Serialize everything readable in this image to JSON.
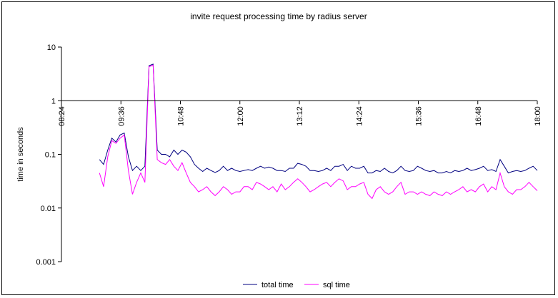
{
  "chart_data": {
    "type": "line",
    "title": "invite request processing time by radius server",
    "ylabel": "time in seconds",
    "xlabel": "",
    "y_scale": "log",
    "ylim": [
      0.001,
      10
    ],
    "y_ticks": [
      0.001,
      0.01,
      0.1,
      1,
      10
    ],
    "y_tick_labels": [
      "0.001",
      "0.01",
      "0.1",
      "1",
      "10"
    ],
    "x_unit": "minutes_of_day",
    "xlim": [
      504,
      1080
    ],
    "x_ticks": [
      504,
      576,
      648,
      720,
      792,
      864,
      936,
      1008,
      1080
    ],
    "x_tick_labels": [
      "08:24",
      "09:36",
      "10:48",
      "12:00",
      "13:12",
      "14:24",
      "15:36",
      "16:48",
      "18:00"
    ],
    "x_axis_crosses_y": 1,
    "grid": false,
    "legend": "bottom",
    "series": [
      {
        "name": "total time",
        "color": "#000080",
        "x": [
          550,
          555,
          560,
          565,
          570,
          575,
          580,
          585,
          590,
          595,
          600,
          605,
          610,
          615,
          620,
          625,
          630,
          635,
          640,
          645,
          650,
          655,
          660,
          665,
          670,
          675,
          680,
          685,
          690,
          695,
          700,
          705,
          710,
          715,
          720,
          725,
          730,
          735,
          740,
          745,
          750,
          755,
          760,
          765,
          770,
          775,
          780,
          785,
          790,
          795,
          800,
          805,
          810,
          815,
          820,
          825,
          830,
          835,
          840,
          845,
          850,
          855,
          860,
          865,
          870,
          875,
          880,
          885,
          890,
          895,
          900,
          905,
          910,
          915,
          920,
          925,
          930,
          935,
          940,
          945,
          950,
          955,
          960,
          965,
          970,
          975,
          980,
          985,
          990,
          995,
          1000,
          1005,
          1010,
          1015,
          1020,
          1025,
          1030,
          1035,
          1040,
          1045,
          1050,
          1055,
          1060,
          1065,
          1070,
          1075,
          1080
        ],
        "values": [
          0.08,
          0.065,
          0.12,
          0.2,
          0.17,
          0.23,
          0.25,
          0.09,
          0.05,
          0.06,
          0.05,
          0.06,
          4.5,
          4.8,
          0.12,
          0.1,
          0.1,
          0.09,
          0.12,
          0.1,
          0.12,
          0.11,
          0.09,
          0.065,
          0.055,
          0.048,
          0.055,
          0.05,
          0.046,
          0.05,
          0.06,
          0.05,
          0.055,
          0.05,
          0.048,
          0.05,
          0.052,
          0.05,
          0.055,
          0.06,
          0.055,
          0.058,
          0.055,
          0.05,
          0.05,
          0.048,
          0.055,
          0.055,
          0.068,
          0.065,
          0.06,
          0.05,
          0.05,
          0.048,
          0.05,
          0.055,
          0.05,
          0.06,
          0.06,
          0.065,
          0.05,
          0.06,
          0.055,
          0.055,
          0.06,
          0.045,
          0.045,
          0.05,
          0.048,
          0.055,
          0.048,
          0.045,
          0.05,
          0.06,
          0.05,
          0.048,
          0.05,
          0.06,
          0.055,
          0.05,
          0.048,
          0.05,
          0.045,
          0.045,
          0.048,
          0.045,
          0.05,
          0.048,
          0.05,
          0.055,
          0.05,
          0.052,
          0.055,
          0.06,
          0.05,
          0.052,
          0.048,
          0.08,
          0.06,
          0.045,
          0.048,
          0.05,
          0.048,
          0.05,
          0.055,
          0.06,
          0.05
        ]
      },
      {
        "name": "sql time",
        "color": "#FF00FF",
        "x": [
          550,
          555,
          560,
          565,
          570,
          575,
          580,
          585,
          590,
          595,
          600,
          605,
          610,
          615,
          620,
          625,
          630,
          635,
          640,
          645,
          650,
          655,
          660,
          665,
          670,
          675,
          680,
          685,
          690,
          695,
          700,
          705,
          710,
          715,
          720,
          725,
          730,
          735,
          740,
          745,
          750,
          755,
          760,
          765,
          770,
          775,
          780,
          785,
          790,
          795,
          800,
          805,
          810,
          815,
          820,
          825,
          830,
          835,
          840,
          845,
          850,
          855,
          860,
          865,
          870,
          875,
          880,
          885,
          890,
          895,
          900,
          905,
          910,
          915,
          920,
          925,
          930,
          935,
          940,
          945,
          950,
          955,
          960,
          965,
          970,
          975,
          980,
          985,
          990,
          995,
          1000,
          1005,
          1010,
          1015,
          1020,
          1025,
          1030,
          1035,
          1040,
          1045,
          1050,
          1055,
          1060,
          1065,
          1070,
          1075,
          1080
        ],
        "values": [
          0.045,
          0.025,
          0.09,
          0.18,
          0.16,
          0.2,
          0.23,
          0.05,
          0.018,
          0.03,
          0.045,
          0.03,
          4.3,
          4.6,
          0.08,
          0.07,
          0.065,
          0.08,
          0.06,
          0.05,
          0.07,
          0.045,
          0.03,
          0.025,
          0.02,
          0.022,
          0.025,
          0.02,
          0.017,
          0.02,
          0.025,
          0.022,
          0.018,
          0.02,
          0.02,
          0.025,
          0.025,
          0.022,
          0.03,
          0.028,
          0.025,
          0.022,
          0.025,
          0.02,
          0.028,
          0.022,
          0.025,
          0.03,
          0.035,
          0.03,
          0.025,
          0.02,
          0.022,
          0.025,
          0.028,
          0.03,
          0.025,
          0.03,
          0.035,
          0.032,
          0.022,
          0.025,
          0.025,
          0.028,
          0.03,
          0.018,
          0.015,
          0.022,
          0.025,
          0.02,
          0.018,
          0.02,
          0.025,
          0.03,
          0.018,
          0.02,
          0.02,
          0.018,
          0.02,
          0.018,
          0.017,
          0.02,
          0.018,
          0.017,
          0.02,
          0.018,
          0.02,
          0.022,
          0.025,
          0.02,
          0.022,
          0.02,
          0.025,
          0.028,
          0.02,
          0.025,
          0.022,
          0.045,
          0.025,
          0.02,
          0.018,
          0.022,
          0.022,
          0.025,
          0.03,
          0.025,
          0.021
        ]
      }
    ]
  }
}
